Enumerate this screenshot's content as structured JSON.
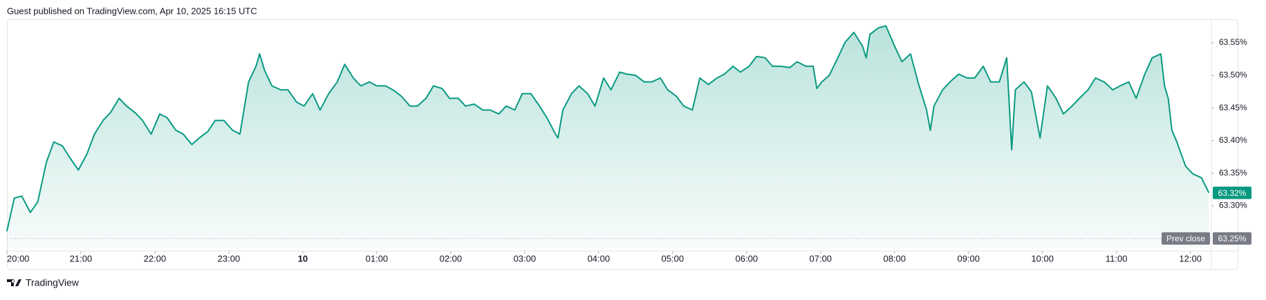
{
  "header": {
    "text": "Guest published on TradingView.com, Apr 10, 2025 16:15 UTC"
  },
  "footer": {
    "brand": "TradingView"
  },
  "chart_data": {
    "type": "area",
    "color": "#089981",
    "x": [
      0,
      6,
      12,
      19,
      25,
      32,
      38,
      45,
      51,
      58,
      65,
      71,
      78,
      84,
      91,
      97,
      104,
      110,
      117,
      124,
      130,
      137,
      143,
      150,
      156,
      163,
      169,
      176,
      183,
      189,
      196,
      202,
      205,
      209,
      215,
      222,
      228,
      235,
      241,
      248,
      254,
      261,
      268,
      274,
      281,
      287,
      294,
      300,
      307,
      313,
      320,
      327,
      333,
      340,
      346,
      353,
      359,
      366,
      372,
      379,
      386,
      392,
      399,
      405,
      412,
      418,
      425,
      432,
      438,
      445,
      447,
      451,
      458,
      464,
      471,
      477,
      484,
      490,
      497,
      503,
      510,
      517,
      523,
      530,
      536,
      543,
      549,
      556,
      562,
      569,
      576,
      582,
      589,
      595,
      602,
      608,
      615,
      621,
      628,
      635,
      641,
      648,
      654,
      657,
      661,
      667,
      674,
      680,
      687,
      694,
      697,
      700,
      707,
      713,
      720,
      726,
      733,
      739,
      746,
      749,
      752,
      759,
      765,
      772,
      779,
      785,
      792,
      798,
      805,
      811,
      815,
      818,
      825,
      831,
      838,
      844,
      851,
      857,
      864,
      870,
      877,
      883,
      890,
      897,
      903,
      910,
      916,
      923,
      929,
      936,
      939,
      942,
      945,
      949,
      956,
      962,
      969,
      975
    ],
    "values": [
      63.261,
      63.312,
      63.315,
      63.29,
      63.306,
      63.367,
      63.398,
      63.392,
      63.374,
      63.355,
      63.38,
      63.41,
      63.431,
      63.443,
      63.465,
      63.453,
      63.443,
      63.431,
      63.41,
      63.441,
      63.435,
      63.416,
      63.41,
      63.394,
      63.404,
      63.414,
      63.431,
      63.431,
      63.416,
      63.41,
      63.49,
      63.514,
      63.533,
      63.508,
      63.484,
      63.478,
      63.478,
      63.459,
      63.453,
      63.472,
      63.447,
      63.472,
      63.49,
      63.517,
      63.496,
      63.484,
      63.49,
      63.484,
      63.484,
      63.478,
      63.468,
      63.453,
      63.453,
      63.465,
      63.484,
      63.48,
      63.465,
      63.465,
      63.453,
      63.456,
      63.447,
      63.447,
      63.441,
      63.453,
      63.447,
      63.472,
      63.472,
      63.453,
      63.435,
      63.41,
      63.404,
      63.447,
      63.472,
      63.484,
      63.472,
      63.453,
      63.496,
      63.478,
      63.505,
      63.502,
      63.5,
      63.49,
      63.49,
      63.496,
      63.478,
      63.468,
      63.453,
      63.447,
      63.496,
      63.486,
      63.496,
      63.502,
      63.514,
      63.505,
      63.514,
      63.529,
      63.527,
      63.514,
      63.514,
      63.512,
      63.521,
      63.514,
      63.514,
      63.48,
      63.49,
      63.5,
      63.527,
      63.551,
      63.566,
      63.545,
      63.527,
      63.563,
      63.573,
      63.576,
      63.545,
      63.521,
      63.533,
      63.49,
      63.447,
      63.416,
      63.453,
      63.478,
      63.49,
      63.502,
      63.496,
      63.496,
      63.514,
      63.49,
      63.49,
      63.527,
      63.386,
      63.478,
      63.49,
      63.475,
      63.404,
      63.484,
      63.465,
      63.441,
      63.453,
      63.465,
      63.478,
      63.496,
      63.49,
      63.478,
      63.484,
      63.49,
      63.465,
      63.502,
      63.527,
      63.533,
      63.484,
      63.465,
      63.416,
      63.398,
      63.361,
      63.349,
      63.343,
      63.32
    ],
    "xlim": [
      0,
      977
    ],
    "xticks": [
      {
        "value": 0,
        "label": "20:00"
      },
      {
        "value": 60,
        "label": "21:00"
      },
      {
        "value": 120,
        "label": "22:00"
      },
      {
        "value": 180,
        "label": "23:00"
      },
      {
        "value": 240,
        "label": "10"
      },
      {
        "value": 300,
        "label": "01:00"
      },
      {
        "value": 360,
        "label": "02:00"
      },
      {
        "value": 420,
        "label": "03:00"
      },
      {
        "value": 480,
        "label": "04:00"
      },
      {
        "value": 540,
        "label": "05:00"
      },
      {
        "value": 600,
        "label": "06:00"
      },
      {
        "value": 660,
        "label": "07:00"
      },
      {
        "value": 720,
        "label": "08:00"
      },
      {
        "value": 780,
        "label": "09:00"
      },
      {
        "value": 840,
        "label": "10:00"
      },
      {
        "value": 900,
        "label": "11:00"
      },
      {
        "value": 960,
        "label": "12:00"
      }
    ],
    "ylim": [
      63.235,
      63.586
    ],
    "yticks": [
      {
        "value": 63.3,
        "label": "63.30%"
      },
      {
        "value": 63.35,
        "label": "63.35%"
      },
      {
        "value": 63.4,
        "label": "63.40%"
      },
      {
        "value": 63.45,
        "label": "63.45%"
      },
      {
        "value": 63.5,
        "label": "63.50%"
      },
      {
        "value": 63.55,
        "label": "63.55%"
      }
    ],
    "last_price": {
      "value": 63.32,
      "label": "63.32%"
    },
    "prev_close": {
      "name": "Prev close",
      "value": 63.25,
      "label": "63.25%"
    }
  }
}
